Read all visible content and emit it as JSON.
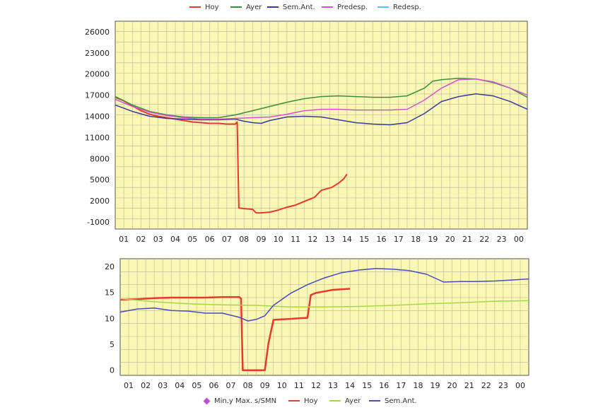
{
  "chart_data": [
    {
      "type": "line",
      "title": "",
      "xlabel": "",
      "ylabel": "",
      "x_ticks": [
        "01",
        "02",
        "03",
        "04",
        "05",
        "06",
        "07",
        "08",
        "09",
        "10",
        "11",
        "12",
        "13",
        "14",
        "15",
        "16",
        "17",
        "18",
        "19",
        "20",
        "21",
        "22",
        "23",
        "00"
      ],
      "y_ticks": [
        "26000",
        "23000",
        "20000",
        "17000",
        "14000",
        "11000",
        "8000",
        "5000",
        "2000",
        "-1000"
      ],
      "xlim": [
        0,
        24
      ],
      "ylim": [
        -2000,
        27500
      ],
      "grid": true,
      "legend_position": "top",
      "legend": [
        "Hoy",
        "Ayer",
        "Sem.Ant.",
        "Predesp.",
        "Redesp."
      ],
      "series": [
        {
          "name": "Hoy",
          "color": "#e8392c",
          "width": 2,
          "x": [
            0,
            0.5,
            1,
            1.5,
            2,
            2.5,
            3,
            3.5,
            4,
            4.5,
            5,
            5.5,
            6,
            6.5,
            7,
            7.1,
            7.2,
            7.5,
            8,
            8.2,
            8.5,
            9,
            9.5,
            10,
            10.5,
            11,
            11.3,
            11.6,
            12,
            12.3,
            12.6,
            13,
            13.3,
            13.5
          ],
          "y": [
            16700,
            16200,
            15500,
            14800,
            14300,
            14000,
            13800,
            13600,
            13400,
            13200,
            13100,
            13000,
            13000,
            12900,
            12900,
            13200,
            1000,
            900,
            800,
            300,
            300,
            400,
            700,
            1100,
            1400,
            1900,
            2200,
            2500,
            3500,
            3700,
            3900,
            4500,
            5100,
            5800
          ]
        },
        {
          "name": "Ayer",
          "color": "#3a8f3a",
          "width": 1.5,
          "x": [
            0,
            1,
            2,
            3,
            4,
            5,
            6,
            7,
            8,
            9,
            10,
            11,
            12,
            13,
            14,
            15,
            16,
            17,
            18,
            18.5,
            19,
            20,
            21,
            22,
            23,
            24
          ],
          "y": [
            16800,
            15600,
            14700,
            14200,
            13900,
            13800,
            13800,
            14200,
            14800,
            15400,
            16000,
            16500,
            16800,
            16900,
            16800,
            16700,
            16700,
            16900,
            18000,
            19000,
            19200,
            19400,
            19300,
            18800,
            18000,
            16700
          ]
        },
        {
          "name": "Sem.Ant.",
          "color": "#3a3a9e",
          "width": 1.5,
          "x": [
            0,
            1,
            2,
            3,
            4,
            5,
            6,
            7,
            7.5,
            8,
            8.5,
            9,
            10,
            11,
            12,
            13,
            14,
            15,
            16,
            17,
            18,
            19,
            20,
            21,
            22,
            23,
            24
          ],
          "y": [
            15600,
            14700,
            14000,
            13700,
            13600,
            13500,
            13500,
            13600,
            13300,
            13100,
            13000,
            13400,
            13900,
            14000,
            13900,
            13500,
            13100,
            12900,
            12800,
            13100,
            14400,
            16100,
            16800,
            17200,
            16900,
            16100,
            15000
          ]
        },
        {
          "name": "Predesp.",
          "color": "#d451d4",
          "width": 1.5,
          "x": [
            0,
            1,
            2,
            3,
            4,
            5,
            6,
            7,
            8,
            9,
            10,
            11,
            12,
            13,
            14,
            15,
            16,
            17,
            18,
            19,
            20,
            21,
            22,
            23,
            24
          ],
          "y": [
            16400,
            15400,
            14600,
            14100,
            13800,
            13600,
            13600,
            13700,
            13800,
            13900,
            14300,
            14800,
            15000,
            15000,
            14900,
            14900,
            14900,
            15000,
            16300,
            18000,
            19200,
            19300,
            18900,
            18000,
            17000
          ]
        },
        {
          "name": "Redesp.",
          "color": "#5bc8e8",
          "width": 1.5,
          "x": [],
          "y": []
        }
      ]
    },
    {
      "type": "line",
      "title": "",
      "xlabel": "",
      "ylabel": "",
      "x_ticks": [
        "01",
        "02",
        "03",
        "04",
        "05",
        "06",
        "07",
        "08",
        "09",
        "10",
        "11",
        "12",
        "13",
        "14",
        "15",
        "16",
        "17",
        "18",
        "19",
        "20",
        "21",
        "22",
        "23",
        "00"
      ],
      "y_ticks": [
        "20",
        "15",
        "10",
        "5",
        "0"
      ],
      "xlim": [
        0,
        24
      ],
      "ylim": [
        -1,
        21.5
      ],
      "grid": true,
      "legend_position": "bottom",
      "legend": [
        "Min.y Max. s/SMN",
        "Hoy",
        "Ayer",
        "Sem.Ant."
      ],
      "series": [
        {
          "name": "Min.y Max. s/SMN",
          "color": "#c050c8",
          "width": 0,
          "x": [],
          "y": []
        },
        {
          "name": "Hoy",
          "color": "#e8392c",
          "width": 2.5,
          "x": [
            0,
            1,
            2,
            3,
            4,
            5,
            6,
            6.5,
            7,
            7.1,
            7.2,
            7.5,
            8,
            8.5,
            8.7,
            9,
            9.5,
            10,
            10.5,
            11,
            11.2,
            11.5,
            12,
            12.5,
            13,
            13.5
          ],
          "y": [
            13.6,
            13.7,
            13.9,
            14.0,
            14.0,
            14.0,
            14.1,
            14.1,
            14.1,
            13.8,
            0,
            0,
            0,
            0,
            5,
            9.7,
            9.8,
            9.9,
            10.0,
            10.1,
            14.5,
            14.9,
            15.2,
            15.5,
            15.6,
            15.7
          ]
        },
        {
          "name": "Ayer",
          "color": "#a8d64a",
          "width": 1.5,
          "x": [
            0,
            2,
            4,
            6,
            8,
            10,
            12,
            14,
            16,
            18,
            20,
            22,
            24
          ],
          "y": [
            13.8,
            13.2,
            12.8,
            12.6,
            12.5,
            12.2,
            12.2,
            12.3,
            12.5,
            12.8,
            13.0,
            13.3,
            13.4
          ]
        },
        {
          "name": "Sem.Ant.",
          "color": "#4a4ac0",
          "width": 1.5,
          "x": [
            0,
            1,
            2,
            3,
            4,
            5,
            6,
            7,
            7.5,
            8,
            8.5,
            9,
            10,
            11,
            12,
            13,
            14,
            15,
            16,
            17,
            18,
            19,
            20,
            21,
            22,
            23,
            24
          ],
          "y": [
            11.2,
            11.8,
            12.0,
            11.5,
            11.4,
            11.0,
            11.0,
            10.2,
            9.5,
            9.8,
            10.5,
            12.5,
            14.8,
            16.5,
            17.8,
            18.8,
            19.3,
            19.6,
            19.5,
            19.2,
            18.5,
            17.0,
            17.1,
            17.1,
            17.2,
            17.4,
            17.6
          ]
        }
      ]
    }
  ]
}
